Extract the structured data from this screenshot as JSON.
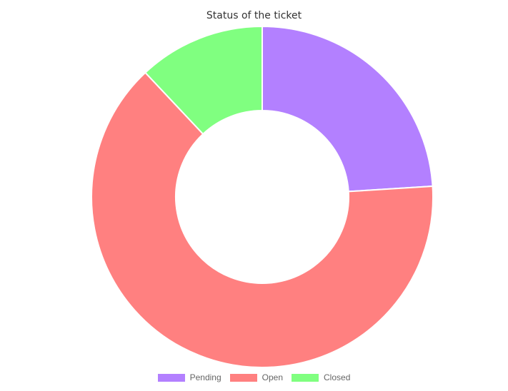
{
  "chart_data": {
    "type": "pie",
    "variant": "doughnut",
    "title": "Status of the ticket",
    "categories": [
      "Pending",
      "Open",
      "Closed"
    ],
    "values": [
      24,
      64,
      12
    ],
    "colors": [
      "#b380ff",
      "#ff8080",
      "#80ff80"
    ],
    "legend_position": "bottom"
  }
}
